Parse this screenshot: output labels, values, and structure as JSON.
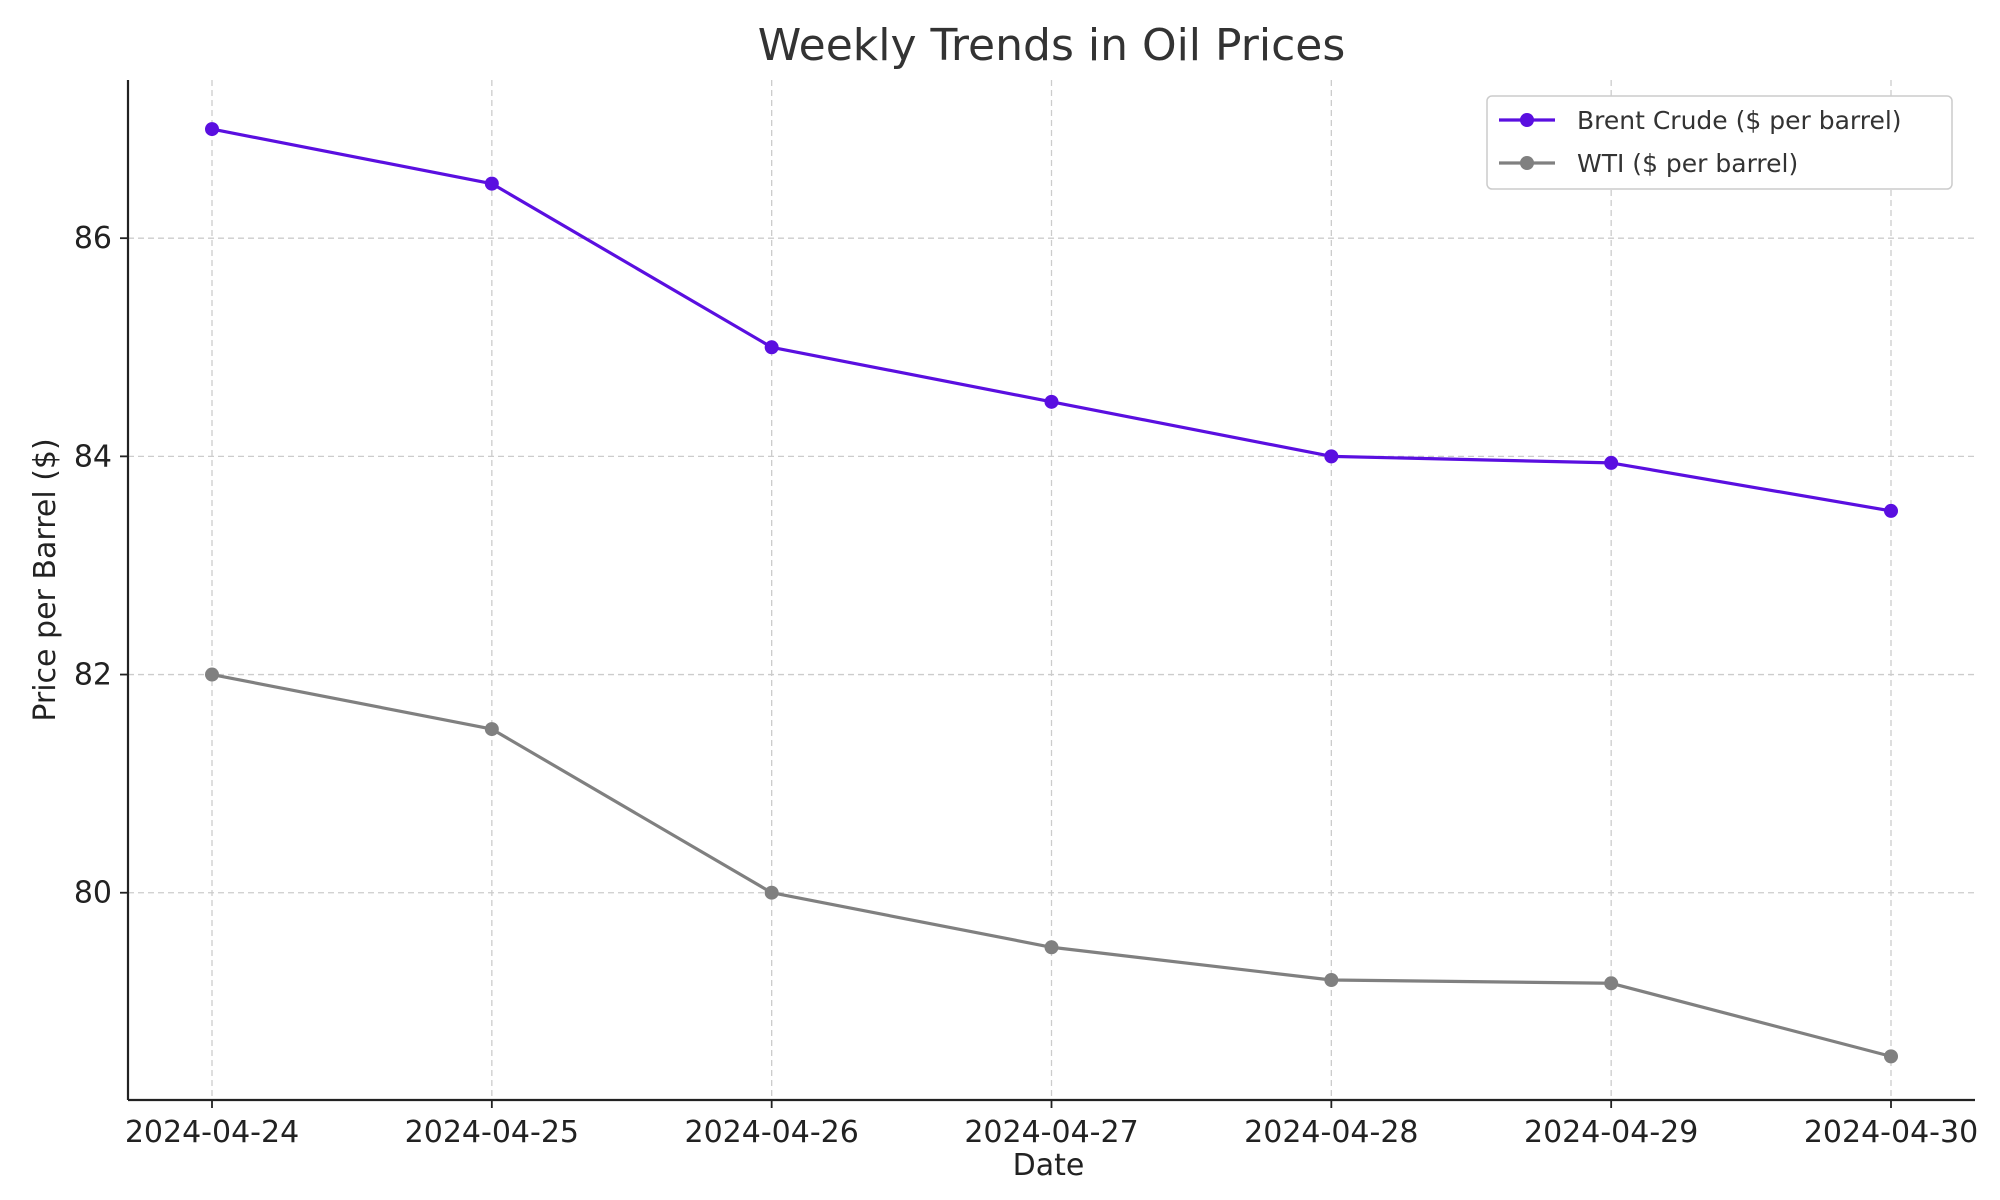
{
  "chart_data": {
    "type": "line",
    "title": "Weekly Trends in Oil Prices",
    "xlabel": "Date",
    "ylabel": "Price per Barrel ($)",
    "categories": [
      "2024-04-24",
      "2024-04-25",
      "2024-04-26",
      "2024-04-27",
      "2024-04-28",
      "2024-04-29",
      "2024-04-30"
    ],
    "ylim": [
      78.1,
      87.45
    ],
    "yticks": [
      80,
      82,
      84,
      86
    ],
    "grid": true,
    "legend_position": "top-right",
    "series": [
      {
        "name": "Brent Crude ($ per barrel)",
        "color": "#5a0fe0",
        "marker": "circle",
        "values": [
          87.0,
          86.5,
          85.0,
          84.5,
          84.0,
          83.94,
          83.5
        ]
      },
      {
        "name": "WTI ($ per barrel)",
        "color": "#808080",
        "marker": "circle",
        "values": [
          82.0,
          81.5,
          80.0,
          79.5,
          79.2,
          79.17,
          78.5
        ]
      }
    ]
  }
}
